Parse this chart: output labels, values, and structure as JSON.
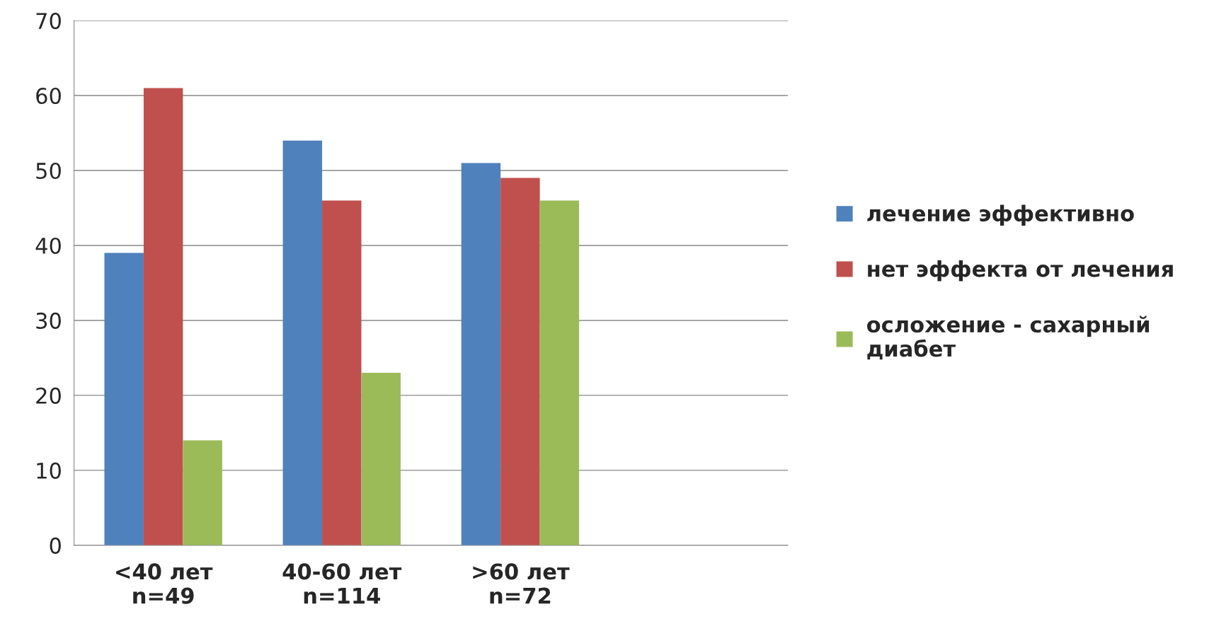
{
  "chart_data": {
    "type": "bar",
    "categories": [
      "<40 лет\nn=49",
      "40-60 лет\nn=114",
      ">60 лет\nn=72",
      null
    ],
    "series": [
      {
        "name": "лечение эффективно",
        "color": "#4f81bd",
        "values": [
          39,
          54,
          51,
          null
        ]
      },
      {
        "name": "нет эффекта от лечения",
        "color": "#c0504d",
        "values": [
          61,
          46,
          49,
          null
        ]
      },
      {
        "name": "осложение - сахарный\nдиабет",
        "color": "#9bbb59",
        "values": [
          14,
          23,
          46,
          null
        ]
      }
    ],
    "ylim": [
      0,
      70
    ],
    "yticks": [
      0,
      10,
      20,
      30,
      40,
      50,
      60,
      70
    ],
    "grid": "y",
    "legend": "right"
  }
}
